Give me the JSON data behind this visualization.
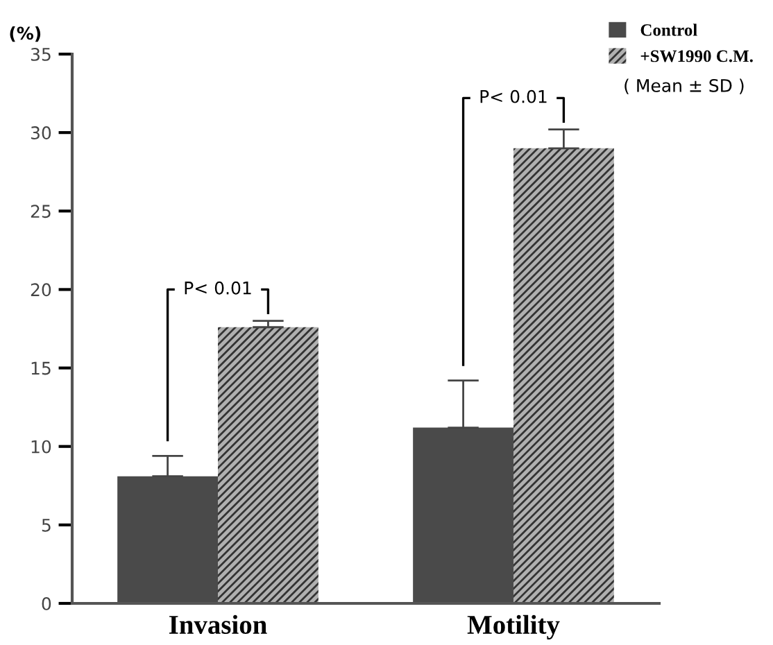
{
  "chart_data": {
    "type": "bar",
    "ylabel": "(%)",
    "categories": [
      "Invasion",
      "Motility"
    ],
    "series": [
      {
        "name": "Control",
        "color": "#4a4a4a",
        "values": [
          8.1,
          11.2
        ],
        "errors": [
          1.3,
          3.0
        ]
      },
      {
        "name": "+SW1990 C.M.",
        "color": "#b0b0b0",
        "values": [
          17.6,
          29.0
        ],
        "errors": [
          0.4,
          1.2
        ]
      }
    ],
    "ylim": [
      0,
      35
    ],
    "yticks": [
      0,
      5,
      10,
      15,
      20,
      25,
      30,
      35
    ],
    "grid": false,
    "legend": "top right",
    "annotations": [
      "P< 0.01",
      "P< 0.01",
      "( Mean ± SD )"
    ]
  }
}
